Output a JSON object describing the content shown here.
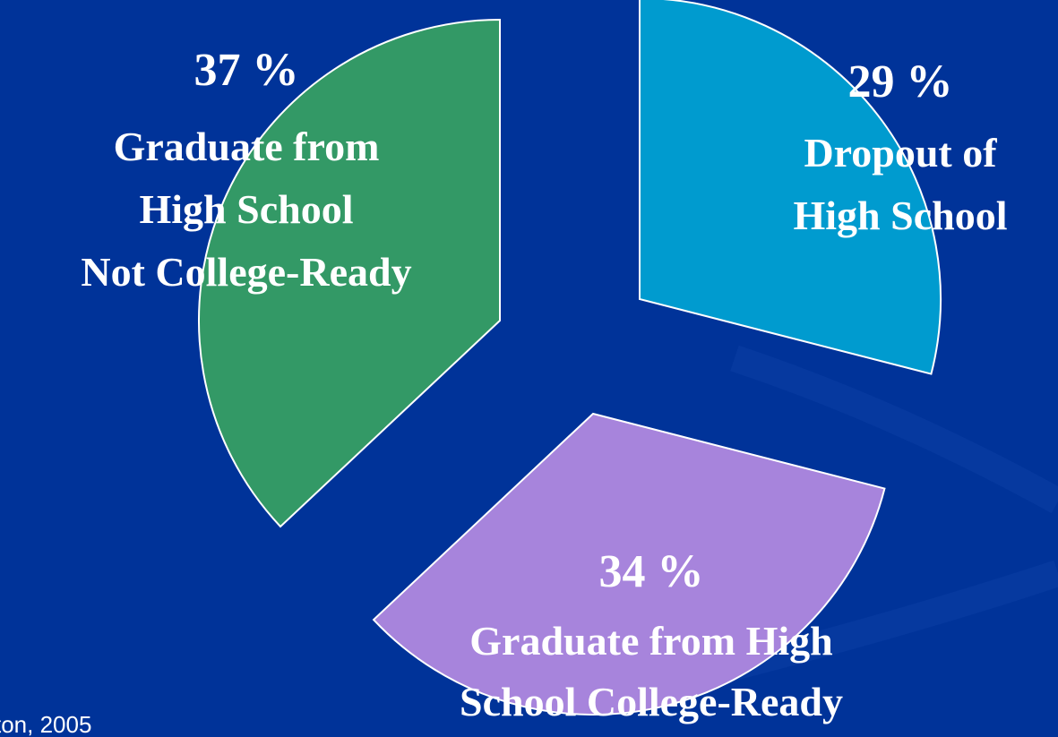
{
  "chart_data": {
    "type": "pie",
    "categories": [
      [
        "Dropout of",
        "High School"
      ],
      [
        "Graduate from High",
        "School College-Ready"
      ],
      [
        "Graduate from",
        "High School",
        "Not College-Ready"
      ]
    ],
    "values": [
      29,
      34,
      37
    ],
    "value_labels": [
      "29 %",
      "34 %",
      "37 %"
    ],
    "colors": [
      "#009bcf",
      "#a784dc",
      "#339966"
    ],
    "source": "ton, 2005"
  }
}
